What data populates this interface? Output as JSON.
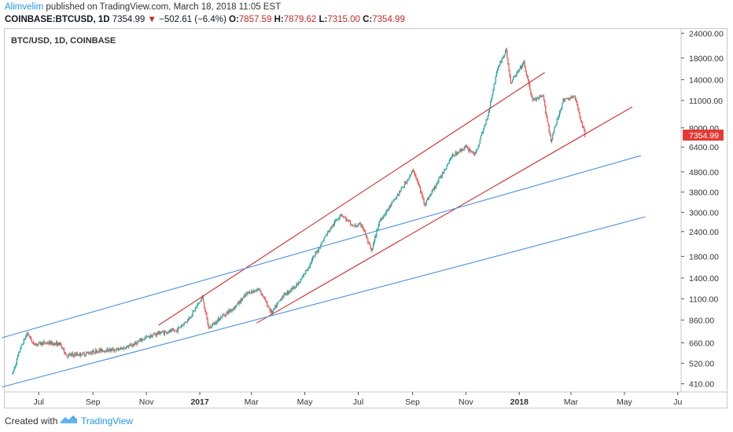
{
  "header": {
    "author": "Alimvelim",
    "published_text": "published on TradingView.com, March 18, 2018 11:05 EST",
    "symbol_text": "COINBASE:BTCUSD, 1D",
    "last_price": "7354.99",
    "change_arrow": "▼",
    "change_text": "−502.61 (−6.4%)",
    "open_label": "O:",
    "open_value": "7857.59",
    "high_label": "H:",
    "high_value": "7879.62",
    "low_label": "L:",
    "low_value": "7315.00",
    "close_label": "C:",
    "close_value": "7354.99"
  },
  "footer": {
    "created_text": "Created with",
    "brand": "TradingView"
  },
  "colors": {
    "up": "#26a69a",
    "down": "#ef5350",
    "red_channel": "#d32f2f",
    "blue_channel": "#4a90d9",
    "last_price_bg": "#e53935"
  },
  "chart_data": {
    "type": "candlestick",
    "title": "BTC/USD, 1D, COINBASE",
    "scale": "log",
    "ylim": [
      380,
      24500
    ],
    "y_ticks": [
      "24000.00",
      "18000.00",
      "14000.00",
      "11000.00",
      "8000.00",
      "6400.00",
      "4800.00",
      "3800.00",
      "3000.00",
      "2400.00",
      "1800.00",
      "1400.00",
      "1100.00",
      "860.00",
      "660.00",
      "520.00",
      "410.00"
    ],
    "x_ticks": [
      "Jul",
      "Sep",
      "Nov",
      "2017",
      "Mar",
      "May",
      "Jul",
      "Sep",
      "Nov",
      "2018",
      "Mar",
      "May",
      "Ju"
    ],
    "last_price_label": "7354.99",
    "price_path": [
      {
        "date": "2016-06-01",
        "price": 460
      },
      {
        "date": "2016-06-10",
        "price": 620
      },
      {
        "date": "2016-06-18",
        "price": 740
      },
      {
        "date": "2016-06-25",
        "price": 650
      },
      {
        "date": "2016-07-10",
        "price": 660
      },
      {
        "date": "2016-07-25",
        "price": 650
      },
      {
        "date": "2016-08-02",
        "price": 570
      },
      {
        "date": "2016-08-20",
        "price": 580
      },
      {
        "date": "2016-09-10",
        "price": 605
      },
      {
        "date": "2016-09-30",
        "price": 610
      },
      {
        "date": "2016-10-15",
        "price": 640
      },
      {
        "date": "2016-10-31",
        "price": 700
      },
      {
        "date": "2016-11-15",
        "price": 740
      },
      {
        "date": "2016-12-05",
        "price": 760
      },
      {
        "date": "2016-12-20",
        "price": 880
      },
      {
        "date": "2017-01-04",
        "price": 1120
      },
      {
        "date": "2017-01-11",
        "price": 780
      },
      {
        "date": "2017-01-25",
        "price": 890
      },
      {
        "date": "2017-02-10",
        "price": 1000
      },
      {
        "date": "2017-02-25",
        "price": 1180
      },
      {
        "date": "2017-03-10",
        "price": 1230
      },
      {
        "date": "2017-03-24",
        "price": 930
      },
      {
        "date": "2017-04-05",
        "price": 1130
      },
      {
        "date": "2017-04-25",
        "price": 1330
      },
      {
        "date": "2017-05-10",
        "price": 1750
      },
      {
        "date": "2017-05-25",
        "price": 2300
      },
      {
        "date": "2017-06-11",
        "price": 2950
      },
      {
        "date": "2017-06-25",
        "price": 2550
      },
      {
        "date": "2017-07-05",
        "price": 2600
      },
      {
        "date": "2017-07-16",
        "price": 1900
      },
      {
        "date": "2017-07-25",
        "price": 2700
      },
      {
        "date": "2017-08-10",
        "price": 3400
      },
      {
        "date": "2017-08-25",
        "price": 4300
      },
      {
        "date": "2017-09-02",
        "price": 4900
      },
      {
        "date": "2017-09-15",
        "price": 3300
      },
      {
        "date": "2017-09-30",
        "price": 4300
      },
      {
        "date": "2017-10-15",
        "price": 5700
      },
      {
        "date": "2017-10-31",
        "price": 6400
      },
      {
        "date": "2017-11-12",
        "price": 5900
      },
      {
        "date": "2017-11-26",
        "price": 9300
      },
      {
        "date": "2017-12-07",
        "price": 16000
      },
      {
        "date": "2017-12-17",
        "price": 19600
      },
      {
        "date": "2017-12-22",
        "price": 13500
      },
      {
        "date": "2018-01-06",
        "price": 17000
      },
      {
        "date": "2018-01-16",
        "price": 11000
      },
      {
        "date": "2018-01-28",
        "price": 11500
      },
      {
        "date": "2018-02-06",
        "price": 6900
      },
      {
        "date": "2018-02-20",
        "price": 11000
      },
      {
        "date": "2018-03-05",
        "price": 11500
      },
      {
        "date": "2018-03-17",
        "price": 7355
      }
    ],
    "trendlines": [
      {
        "name": "red-channel-upper",
        "color": "red",
        "from": {
          "date": "2016-11-15",
          "price": 810
        },
        "to": {
          "date": "2018-01-30",
          "price": 15200
        }
      },
      {
        "name": "red-channel-lower",
        "color": "red",
        "from": {
          "date": "2017-03-07",
          "price": 830
        },
        "to": {
          "date": "2018-05-10",
          "price": 10200
        }
      },
      {
        "name": "blue-channel-upper",
        "color": "blue",
        "from": {
          "date": "2016-05-20",
          "price": 700
        },
        "to": {
          "date": "2018-05-20",
          "price": 5800
        }
      },
      {
        "name": "blue-channel-lower",
        "color": "blue",
        "from": {
          "date": "2016-05-20",
          "price": 395
        },
        "to": {
          "date": "2018-05-25",
          "price": 2850
        }
      }
    ]
  }
}
